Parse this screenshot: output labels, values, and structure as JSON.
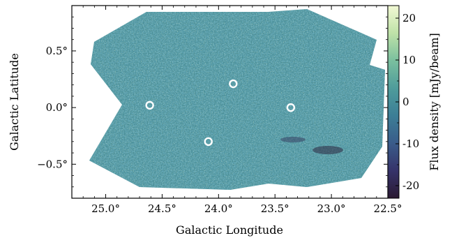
{
  "chart_data": {
    "type": "heatmap",
    "xlabel": "Galactic Longitude",
    "ylabel": "Galactic Latitude",
    "xlim": [
      25.3,
      22.5
    ],
    "ylim": [
      -0.8,
      0.9
    ],
    "xticks": [
      {
        "value": 25.0,
        "label": "25.0°"
      },
      {
        "value": 24.5,
        "label": "24.5°"
      },
      {
        "value": 24.0,
        "label": "24.0°"
      },
      {
        "value": 23.5,
        "label": "23.5°"
      },
      {
        "value": 23.0,
        "label": "23.0°"
      },
      {
        "value": 22.5,
        "label": "22.5°"
      }
    ],
    "yticks": [
      {
        "value": 0.5,
        "label": "0.5°"
      },
      {
        "value": 0.0,
        "label": "0.0°"
      },
      {
        "value": -0.5,
        "label": "−0.5°"
      }
    ],
    "colorbar": {
      "label": "Flux density  [mJy/beam]",
      "range": [
        -23,
        23
      ],
      "ticks": [
        {
          "value": 20,
          "label": "20"
        },
        {
          "value": 10,
          "label": "10"
        },
        {
          "value": 0,
          "label": "0"
        },
        {
          "value": -10,
          "label": "-10"
        },
        {
          "value": -20,
          "label": "-20"
        }
      ],
      "colormap": [
        "#2b1a33",
        "#36336a",
        "#3a5c8a",
        "#3c7e96",
        "#4f9c9b",
        "#7abf9e",
        "#bfe2a8",
        "#f2f9d4"
      ]
    },
    "markers": [
      {
        "l": 24.61,
        "b": 0.02
      },
      {
        "l": 23.87,
        "b": 0.21
      },
      {
        "l": 23.36,
        "b": 0.0
      },
      {
        "l": 24.09,
        "b": -0.3
      }
    ],
    "colors": {
      "marker": "#ffffff",
      "map_mean": "#4b8f98"
    }
  }
}
